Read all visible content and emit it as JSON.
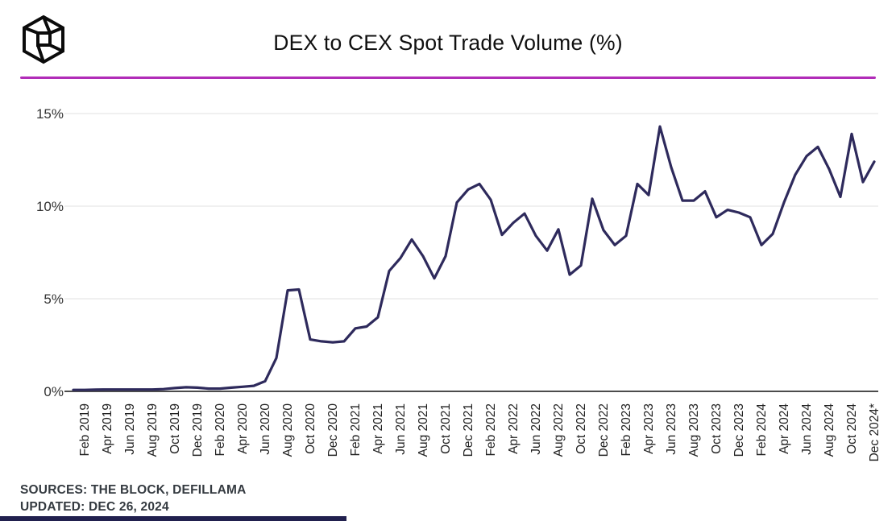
{
  "header": {
    "title": "DEX to CEX Spot Trade Volume (%)",
    "logo": "the-block-logo"
  },
  "chart_data": {
    "type": "line",
    "title": "DEX to CEX Spot Trade Volume (%)",
    "x_domain": "Jan 2019 - Dec 2024, monthly",
    "x_ticks": [
      "Feb 2019",
      "Apr 2019",
      "Jun 2019",
      "Aug 2019",
      "Oct 2019",
      "Dec 2019",
      "Feb 2020",
      "Apr 2020",
      "Jun 2020",
      "Aug 2020",
      "Oct 2020",
      "Dec 2020",
      "Feb 2021",
      "Apr 2021",
      "Jun 2021",
      "Aug 2021",
      "Oct 2021",
      "Dec 2021",
      "Feb 2022",
      "Apr 2022",
      "Jun 2022",
      "Aug 2022",
      "Oct 2022",
      "Dec 2022",
      "Feb 2023",
      "Apr 2023",
      "Jun 2023",
      "Aug 2023",
      "Oct 2023",
      "Dec 2023",
      "Feb 2024",
      "Apr 2024",
      "Jun 2024",
      "Aug 2024",
      "Oct 2024",
      "Dec 2024*"
    ],
    "y_ticks": [
      "0%",
      "5%",
      "10%",
      "15%"
    ],
    "ylim": [
      0,
      15
    ],
    "grid": "horizontal",
    "legend": "none",
    "series": [
      {
        "name": "DEX to CEX spot trade volume (%)",
        "values": [
          0.08,
          0.08,
          0.09,
          0.1,
          0.1,
          0.1,
          0.1,
          0.1,
          0.12,
          0.18,
          0.22,
          0.2,
          0.15,
          0.15,
          0.2,
          0.25,
          0.3,
          0.55,
          1.8,
          5.45,
          5.5,
          2.8,
          2.7,
          2.65,
          2.7,
          3.4,
          3.5,
          4.0,
          6.5,
          7.2,
          8.2,
          7.3,
          6.1,
          7.3,
          10.2,
          10.9,
          11.2,
          10.35,
          8.45,
          9.1,
          9.6,
          8.4,
          7.6,
          8.75,
          6.3,
          6.8,
          10.4,
          8.7,
          7.9,
          8.4,
          11.2,
          10.6,
          14.3,
          12.1,
          10.3,
          10.3,
          10.8,
          9.4,
          9.8,
          9.65,
          9.4,
          7.9,
          8.5,
          10.2,
          11.7,
          12.7,
          13.2,
          12.0,
          10.5,
          13.9,
          11.3,
          12.4
        ]
      }
    ]
  },
  "footer": {
    "sources": "SOURCES: THE BLOCK, DEFILLAMA",
    "updated": "UPDATED: DEC 26, 2024"
  },
  "colors": {
    "divider": "#b12cb8",
    "line": "#2e2a5c",
    "axis": "#4c4c4c",
    "grid": "#ebebeb",
    "tick_text": "#222222",
    "bottom_bar": "#21204e"
  }
}
